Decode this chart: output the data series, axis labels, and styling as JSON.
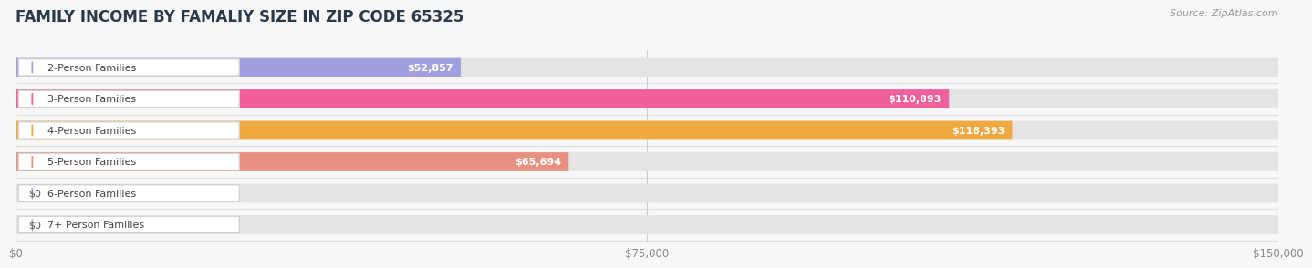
{
  "title": "FAMILY INCOME BY FAMALIY SIZE IN ZIP CODE 65325",
  "source": "Source: ZipAtlas.com",
  "categories": [
    "2-Person Families",
    "3-Person Families",
    "4-Person Families",
    "5-Person Families",
    "6-Person Families",
    "7+ Person Families"
  ],
  "values": [
    52857,
    110893,
    118393,
    65694,
    0,
    0
  ],
  "bar_colors": [
    "#a0a0e0",
    "#f0609a",
    "#f0a840",
    "#e89080",
    "#a8c0e8",
    "#c8b0dc"
  ],
  "label_colors": [
    "#555555",
    "#ffffff",
    "#ffffff",
    "#555555",
    "#555555",
    "#555555"
  ],
  "xlim": [
    0,
    150000
  ],
  "xticks": [
    0,
    75000,
    150000
  ],
  "xtick_labels": [
    "$0",
    "$75,000",
    "$150,000"
  ],
  "background_color": "#f7f7f7",
  "bar_bg_color": "#e4e4e4",
  "value_labels": [
    "$52,857",
    "$110,893",
    "$118,393",
    "$65,694",
    "$0",
    "$0"
  ],
  "title_fontsize": 12,
  "source_fontsize": 8,
  "label_fontsize": 8,
  "value_fontsize": 8,
  "bar_height": 0.6
}
